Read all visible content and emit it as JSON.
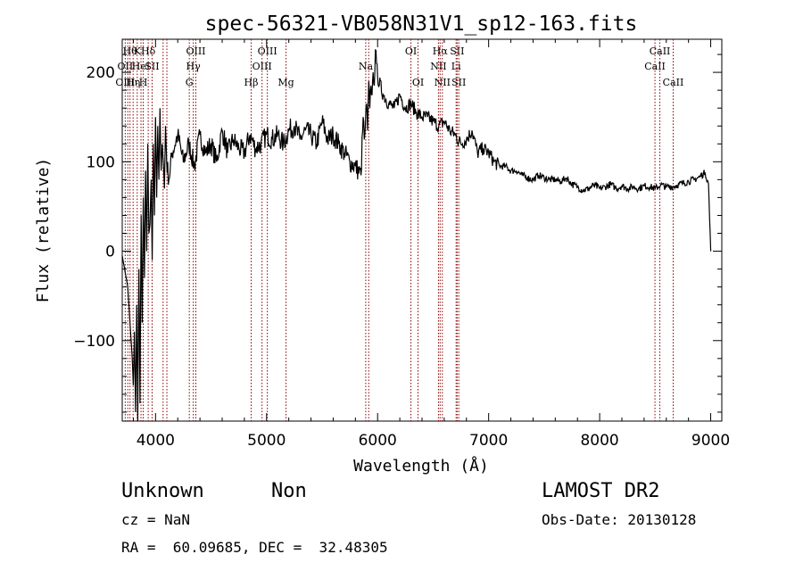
{
  "chart_data": {
    "type": "line",
    "title": "spec-56321-VB058N31V1_sp12-163.fits",
    "xlabel": "Wavelength (Å)",
    "ylabel": "Flux (relative)",
    "xlim": [
      3700,
      9100
    ],
    "ylim": [
      -190,
      237
    ],
    "xticks": [
      {
        "value": 4000,
        "label": "4000"
      },
      {
        "value": 5000,
        "label": "5000"
      },
      {
        "value": 6000,
        "label": "6000"
      },
      {
        "value": 7000,
        "label": "7000"
      },
      {
        "value": 8000,
        "label": "8000"
      },
      {
        "value": 9000,
        "label": "9000"
      }
    ],
    "yticks": [
      {
        "value": -100,
        "label": "−100"
      },
      {
        "value": 0,
        "label": "0"
      },
      {
        "value": 100,
        "label": "100"
      },
      {
        "value": 200,
        "label": "200"
      }
    ],
    "grid": false,
    "series": [
      {
        "color": "#000000",
        "x": [
          3700,
          3750,
          3790,
          3800,
          3810,
          3820,
          3830,
          3840,
          3850,
          3860,
          3870,
          3880,
          3890,
          3900,
          3910,
          3920,
          3930,
          3940,
          3950,
          3960,
          3970,
          3980,
          3990,
          4000,
          4010,
          4020,
          4030,
          4040,
          4050,
          4060,
          4070,
          4080,
          4090,
          4100,
          4120,
          4150,
          4200,
          4250,
          4300,
          4350,
          4400,
          4450,
          4500,
          4550,
          4600,
          4650,
          4700,
          4750,
          4800,
          4850,
          4900,
          4950,
          5000,
          5050,
          5100,
          5150,
          5200,
          5250,
          5300,
          5350,
          5400,
          5450,
          5500,
          5550,
          5600,
          5650,
          5700,
          5750,
          5800,
          5850,
          5870,
          5880,
          5890,
          5900,
          5910,
          5920,
          5930,
          5940,
          5950,
          5960,
          5970,
          5980,
          5990,
          6000,
          6050,
          6100,
          6150,
          6200,
          6250,
          6300,
          6350,
          6400,
          6450,
          6500,
          6550,
          6600,
          6650,
          6700,
          6750,
          6800,
          6850,
          6900,
          6950,
          7000,
          7050,
          7100,
          7150,
          7200,
          7250,
          7300,
          7350,
          7400,
          7450,
          7500,
          7550,
          7600,
          7650,
          7700,
          7750,
          7800,
          7850,
          7900,
          7950,
          8000,
          8050,
          8100,
          8150,
          8200,
          8250,
          8300,
          8350,
          8400,
          8450,
          8500,
          8550,
          8600,
          8650,
          8700,
          8750,
          8800,
          8850,
          8900,
          8950,
          8980,
          9000
        ],
        "y": [
          -5,
          -40,
          -120,
          -150,
          -90,
          -180,
          -60,
          -190,
          -20,
          -170,
          40,
          -80,
          60,
          -30,
          90,
          0,
          120,
          20,
          30,
          80,
          -10,
          120,
          40,
          150,
          60,
          140,
          80,
          160,
          90,
          120,
          100,
          70,
          140,
          100,
          80,
          110,
          130,
          100,
          120,
          95,
          130,
          110,
          120,
          100,
          135,
          110,
          125,
          115,
          110,
          130,
          115,
          120,
          130,
          125,
          130,
          120,
          135,
          140,
          125,
          135,
          130,
          120,
          145,
          125,
          130,
          120,
          110,
          100,
          95,
          85,
          150,
          125,
          140,
          165,
          135,
          190,
          160,
          185,
          175,
          200,
          185,
          225,
          210,
          195,
          175,
          165,
          160,
          175,
          160,
          165,
          155,
          150,
          150,
          145,
          140,
          145,
          135,
          130,
          120,
          125,
          135,
          110,
          115,
          110,
          100,
          95,
          95,
          90,
          90,
          85,
          82,
          80,
          85,
          82,
          80,
          80,
          78,
          82,
          75,
          72,
          68,
          70,
          74,
          70,
          72,
          75,
          70,
          73,
          70,
          72,
          70,
          73,
          72,
          70,
          74,
          72,
          72,
          74,
          76,
          78,
          80,
          83,
          88,
          75,
          0
        ]
      }
    ]
  },
  "lines": {
    "group1": [
      {
        "wave": 3727,
        "labels": [
          {
            "text": "OIII",
            "row": 3
          },
          {
            "text": "OII",
            "row": 2
          }
        ]
      },
      {
        "wave": 3750,
        "labels": []
      },
      {
        "wave": 3770,
        "labels": [
          {
            "text": "Hθ",
            "row": 1
          }
        ]
      },
      {
        "wave": 3798,
        "labels": [
          {
            "text": "Hη",
            "row": 3
          }
        ]
      },
      {
        "wave": 3835,
        "labels": [
          {
            "text": "K",
            "row": 1
          }
        ]
      },
      {
        "wave": 3869,
        "labels": [
          {
            "text": "HeI",
            "row": 2
          }
        ]
      },
      {
        "wave": 3889,
        "labels": [
          {
            "text": "H",
            "row": 3
          }
        ]
      },
      {
        "wave": 3934,
        "labels": [
          {
            "text": "Hδ",
            "row": 1
          }
        ]
      },
      {
        "wave": 3969,
        "labels": [
          {
            "text": "SII",
            "row": 2
          }
        ]
      },
      {
        "wave": 4068,
        "labels": []
      },
      {
        "wave": 4102,
        "labels": []
      },
      {
        "wave": 4304,
        "labels": [
          {
            "text": "G",
            "row": 3
          }
        ]
      },
      {
        "wave": 4340,
        "labels": [
          {
            "text": "Hγ",
            "row": 2
          }
        ]
      },
      {
        "wave": 4363,
        "labels": [
          {
            "text": "OIII",
            "row": 1
          }
        ]
      },
      {
        "wave": 4861,
        "labels": [
          {
            "text": "Hβ",
            "row": 3
          }
        ]
      },
      {
        "wave": 4959,
        "labels": [
          {
            "text": "OIII",
            "row": 2
          }
        ]
      },
      {
        "wave": 5007,
        "labels": [
          {
            "text": "OIII",
            "row": 1
          }
        ]
      },
      {
        "wave": 5175,
        "labels": [
          {
            "text": "Mg",
            "row": 3
          }
        ]
      },
      {
        "wave": 5893,
        "labels": [
          {
            "text": "Na",
            "row": 2
          }
        ]
      },
      {
        "wave": 5920,
        "labels": []
      },
      {
        "wave": 6300,
        "labels": [
          {
            "text": "OI",
            "row": 1
          }
        ]
      },
      {
        "wave": 6364,
        "labels": [
          {
            "text": "OI",
            "row": 3
          }
        ]
      },
      {
        "wave": 6548,
        "labels": [
          {
            "text": "NII",
            "row": 2
          }
        ]
      },
      {
        "wave": 6563,
        "labels": [
          {
            "text": "Hα",
            "row": 1
          }
        ]
      },
      {
        "wave": 6583,
        "labels": [
          {
            "text": "NII",
            "row": 3
          }
        ]
      },
      {
        "wave": 6707,
        "labels": [
          {
            "text": "Li",
            "row": 2
          }
        ]
      },
      {
        "wave": 6716,
        "labels": [
          {
            "text": "SII",
            "row": 1
          }
        ]
      },
      {
        "wave": 6731,
        "labels": [
          {
            "text": "SII",
            "row": 3
          }
        ]
      },
      {
        "wave": 8498,
        "labels": [
          {
            "text": "CaII",
            "row": 2
          }
        ]
      },
      {
        "wave": 8542,
        "labels": [
          {
            "text": "CaII",
            "row": 1
          }
        ]
      },
      {
        "wave": 8662,
        "labels": [
          {
            "text": "CaII",
            "row": 3
          }
        ]
      }
    ],
    "color": "#8b0000"
  },
  "info": {
    "class": "Unknown",
    "subclass": "Non",
    "survey": "LAMOST DR2",
    "cz": "cz = NaN",
    "obs_date": "Obs-Date: 20130128",
    "coords": "RA =  60.09685, DEC =  32.48305"
  }
}
